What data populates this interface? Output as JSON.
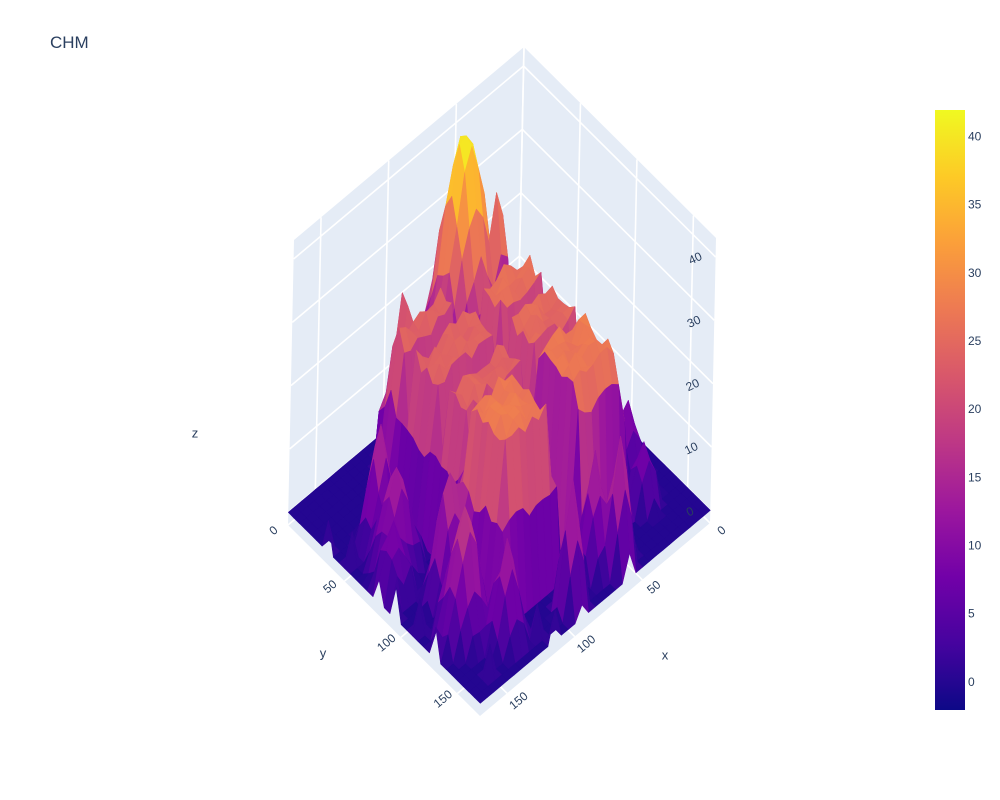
{
  "chart_data": {
    "type": "surface",
    "title": "CHM",
    "xlabel": "x",
    "ylabel": "y",
    "zlabel": "z",
    "x_ticks": [
      "0",
      "50",
      "100",
      "150"
    ],
    "y_ticks": [
      "0",
      "50",
      "100",
      "150"
    ],
    "z_ticks": [
      "0",
      "10",
      "20",
      "30",
      "40"
    ],
    "xlim": [
      0,
      170
    ],
    "ylim": [
      0,
      170
    ],
    "zlim": [
      -2,
      43
    ],
    "colorbar": {
      "ticks": [
        "0",
        "5",
        "10",
        "15",
        "20",
        "25",
        "30",
        "35",
        "40"
      ],
      "range": [
        -2,
        42
      ],
      "colorscale": "plasma"
    },
    "features": [
      {
        "shape": "block",
        "x": [
          35,
          75
        ],
        "y": [
          45,
          70
        ],
        "z": 26
      },
      {
        "shape": "block",
        "x": [
          35,
          75
        ],
        "y": [
          70,
          100
        ],
        "z": 25
      },
      {
        "shape": "block",
        "x": [
          75,
          125
        ],
        "y": [
          45,
          75
        ],
        "z": 24
      },
      {
        "shape": "block",
        "x": [
          75,
          125
        ],
        "y": [
          75,
          100
        ],
        "z": 24
      },
      {
        "shape": "block",
        "x": [
          80,
          125
        ],
        "y": [
          25,
          45
        ],
        "z": 24
      },
      {
        "shape": "block",
        "x": [
          90,
          130
        ],
        "y": [
          100,
          140
        ],
        "z": 27
      },
      {
        "shape": "block",
        "x": [
          40,
          78
        ],
        "y": [
          100,
          142
        ],
        "z": 27
      },
      {
        "shape": "block",
        "x": [
          45,
          65
        ],
        "y": [
          30,
          45
        ],
        "z": 18
      },
      {
        "shape": "peak",
        "x": 55,
        "y": 15,
        "z": 42,
        "r": 14
      },
      {
        "shape": "peak",
        "x": 38,
        "y": 25,
        "z": 32,
        "r": 6
      },
      {
        "shape": "peak",
        "x": 105,
        "y": 22,
        "z": 29,
        "r": 6
      },
      {
        "shape": "peak",
        "x": 120,
        "y": 35,
        "z": 26,
        "r": 6
      },
      {
        "shape": "peak",
        "x": 150,
        "y": 70,
        "z": 15,
        "r": 8
      },
      {
        "shape": "peak",
        "x": 145,
        "y": 50,
        "z": 18,
        "r": 6
      },
      {
        "shape": "peak",
        "x": 160,
        "y": 80,
        "z": 11,
        "r": 6
      },
      {
        "shape": "peak",
        "x": 140,
        "y": 105,
        "z": 20,
        "r": 7
      },
      {
        "shape": "peak",
        "x": 150,
        "y": 130,
        "z": 20,
        "r": 8
      },
      {
        "shape": "peak",
        "x": 135,
        "y": 150,
        "z": 16,
        "r": 6
      },
      {
        "shape": "peak",
        "x": 70,
        "y": 150,
        "z": 18,
        "r": 6
      },
      {
        "shape": "peak",
        "x": 20,
        "y": 120,
        "z": 12,
        "r": 6
      },
      {
        "shape": "peak",
        "x": 25,
        "y": 140,
        "z": 10,
        "r": 6
      },
      {
        "shape": "peak",
        "x": 60,
        "y": 160,
        "z": 22,
        "r": 5
      },
      {
        "shape": "peak",
        "x": 95,
        "y": 160,
        "z": 20,
        "r": 5
      }
    ]
  }
}
